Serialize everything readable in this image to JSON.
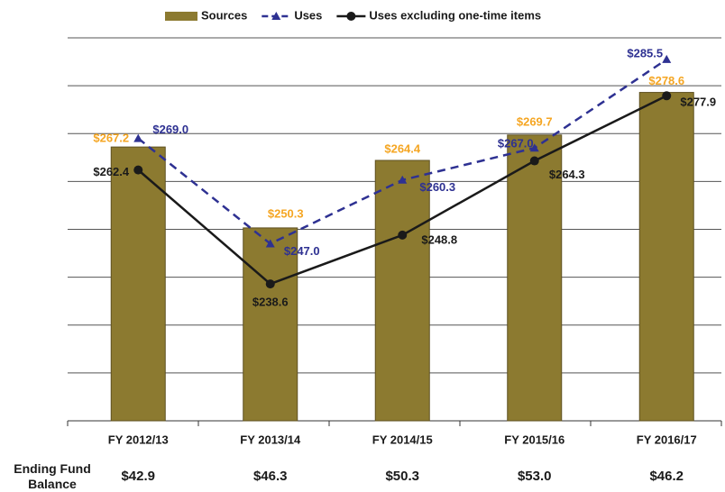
{
  "chart_data": {
    "type": "bar_line",
    "categories": [
      "FY 2012/13",
      "FY 2013/14",
      "FY 2014/15",
      "FY 2015/16",
      "FY 2016/17"
    ],
    "series": [
      {
        "name": "Sources",
        "type": "bar",
        "color": "#8c7a30",
        "label_color": "#f5a623",
        "values": [
          267.2,
          250.3,
          264.4,
          269.7,
          278.6
        ],
        "value_labels": [
          "$267.2",
          "$250.3",
          "$264.4",
          "$269.7",
          "$278.6"
        ]
      },
      {
        "name": "Uses",
        "type": "line",
        "dashed": true,
        "marker": "triangle",
        "color": "#2e3192",
        "label_color": "#2e3192",
        "values": [
          269.0,
          247.0,
          260.3,
          267.0,
          285.5
        ],
        "value_labels": [
          "$269.0",
          "$247.0",
          "$260.3",
          "$267.0",
          "$285.5"
        ]
      },
      {
        "name": "Uses excluding one-time items",
        "type": "line",
        "dashed": false,
        "marker": "circle",
        "color": "#1a1a1a",
        "label_color": "#1a1a1a",
        "values": [
          262.4,
          238.6,
          248.8,
          264.3,
          277.9
        ],
        "value_labels": [
          "$262.4",
          "$238.6",
          "$248.8",
          "$264.3",
          "$277.9"
        ]
      }
    ],
    "ylim": [
      210,
      290
    ],
    "yticks": [
      210,
      220,
      230,
      240,
      250,
      260,
      270,
      280,
      290
    ],
    "grid": true,
    "legend": "top",
    "footer_row": {
      "label": "Ending Fund Balance",
      "values": [
        "$42.9",
        "$46.3",
        "$50.3",
        "$53.0",
        "$46.2"
      ]
    }
  }
}
